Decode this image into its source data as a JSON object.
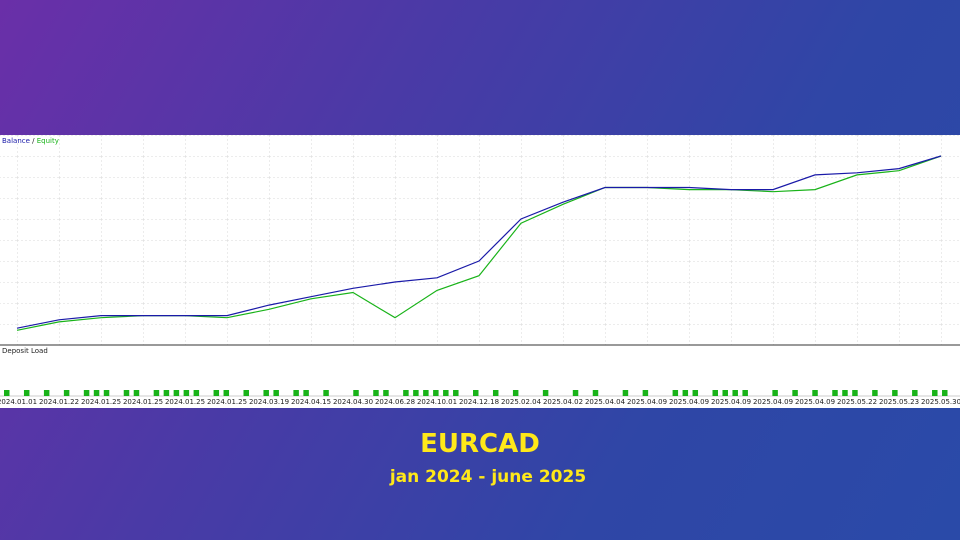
{
  "chart_data": [
    {
      "type": "line",
      "legend_separator": "/",
      "categories": [
        "2024.01.01",
        "2024.01.22",
        "2024.01.25",
        "2024.01.25",
        "2024.01.25",
        "2024.01.25",
        "2024.03.19",
        "2024.04.15",
        "2024.04.30",
        "2024.06.28",
        "2024.10.01",
        "2024.12.18",
        "2025.02.04",
        "2025.04.02",
        "2025.04.04",
        "2025.04.09",
        "2025.04.09",
        "2025.04.09",
        "2025.04.09",
        "2025.04.09",
        "2025.05.22",
        "2025.05.23",
        "2025.05.30"
      ],
      "series": [
        {
          "name": "Balance",
          "color": "#1a1aa8",
          "values": [
            8,
            12,
            14,
            14,
            14,
            14,
            19,
            23,
            27,
            30,
            32,
            40,
            60,
            68,
            75,
            75,
            75,
            74,
            74,
            81,
            82,
            84,
            90
          ]
        },
        {
          "name": "Equity",
          "color": "#19b319",
          "values": [
            7,
            11,
            13,
            14,
            14,
            13,
            17,
            22,
            25,
            13,
            26,
            33,
            58,
            67,
            75,
            75,
            74,
            74,
            73,
            74,
            81,
            83,
            90
          ]
        }
      ],
      "ylim": [
        0,
        100
      ],
      "grid": true,
      "subtitle": "EURCAD",
      "caption": "jan 2024 - june 2025"
    },
    {
      "type": "bar",
      "title": "Deposit Load",
      "color": "#19b319",
      "ylim": [
        0,
        8
      ],
      "values": [
        1,
        0,
        1,
        0,
        1,
        0,
        1,
        0,
        1,
        1,
        1,
        0,
        1,
        1,
        0,
        1,
        1,
        1,
        1,
        1,
        0,
        1,
        1,
        0,
        1,
        0,
        1,
        1,
        0,
        1,
        1,
        0,
        1,
        0,
        0,
        1,
        0,
        1,
        1,
        0,
        1,
        1,
        1,
        1,
        1,
        1,
        0,
        1,
        0,
        1,
        0,
        1,
        0,
        0,
        1,
        0,
        0,
        1,
        0,
        1,
        0,
        0,
        1,
        0,
        1,
        0,
        0,
        1,
        1,
        1,
        0,
        1,
        1,
        1,
        1,
        0,
        0,
        1,
        0,
        1,
        0,
        1,
        0,
        1,
        1,
        1,
        0,
        1,
        0,
        1,
        0,
        1,
        0,
        1,
        1
      ]
    }
  ]
}
